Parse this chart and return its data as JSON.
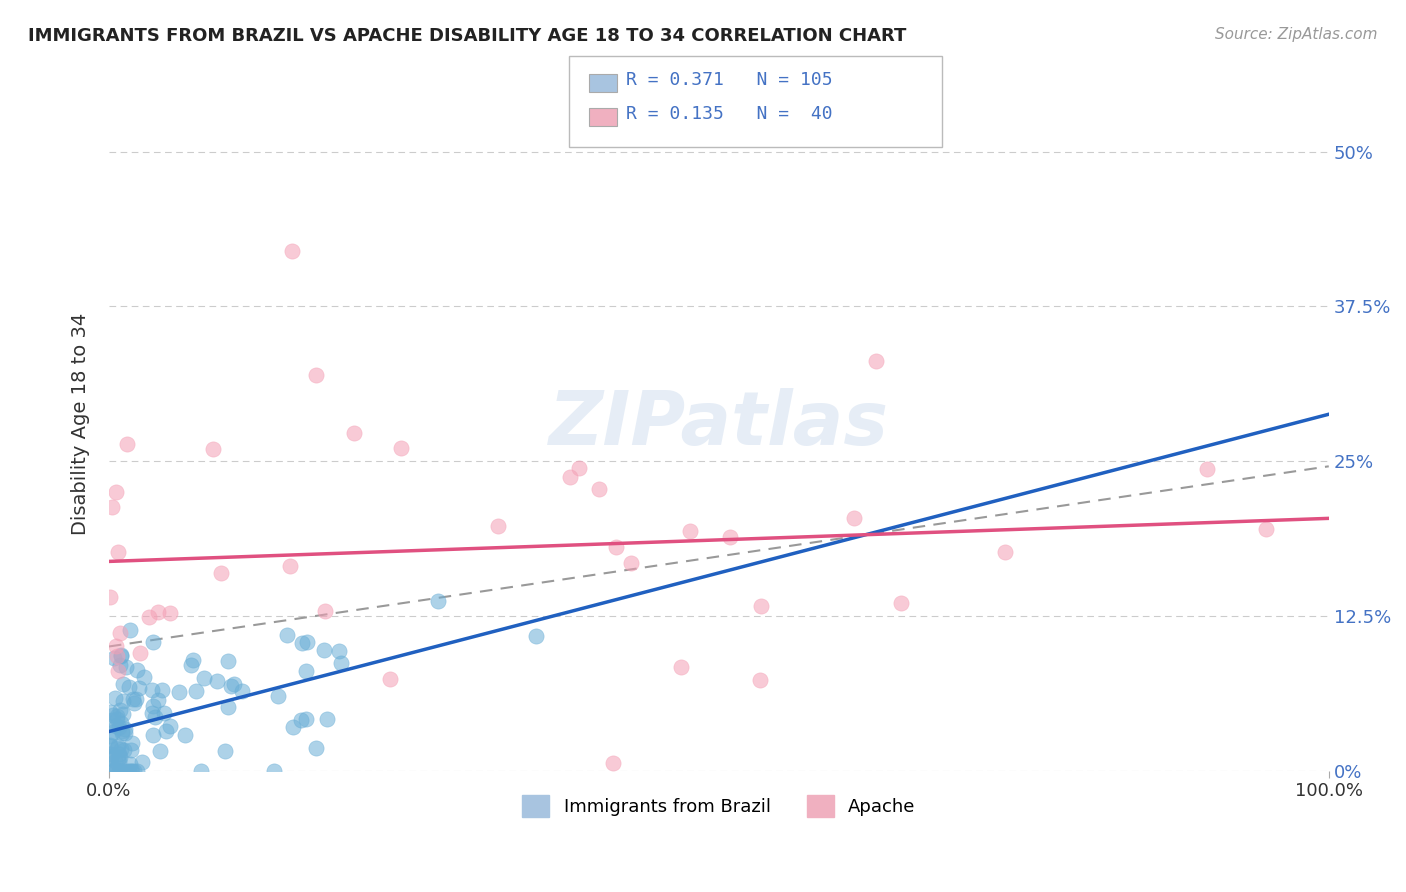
{
  "title": "IMMIGRANTS FROM BRAZIL VS APACHE DISABILITY AGE 18 TO 34 CORRELATION CHART",
  "source": "Source: ZipAtlas.com",
  "ylabel": "Disability Age 18 to 34",
  "y_tick_labels": [
    "0%",
    "12.5%",
    "25%",
    "37.5%",
    "50%"
  ],
  "y_tick_values": [
    0,
    0.125,
    0.25,
    0.375,
    0.5
  ],
  "xlim": [
    0,
    1.0
  ],
  "ylim": [
    0,
    0.56
  ],
  "brazil_color": "#6aaed6",
  "apache_color": "#f4a0b5",
  "brazil_R": 0.371,
  "brazil_N": 105,
  "apache_R": 0.135,
  "apache_N": 40,
  "watermark": "ZIPatlas",
  "background_color": "#ffffff",
  "legend_sq_brazil": "#a8c4e0",
  "legend_sq_apache": "#f0b0c0",
  "legend_text_color": "#4472c4",
  "right_tick_color": "#4472c4",
  "title_fontsize": 13,
  "source_fontsize": 11,
  "tick_fontsize": 13,
  "ylabel_fontsize": 14
}
